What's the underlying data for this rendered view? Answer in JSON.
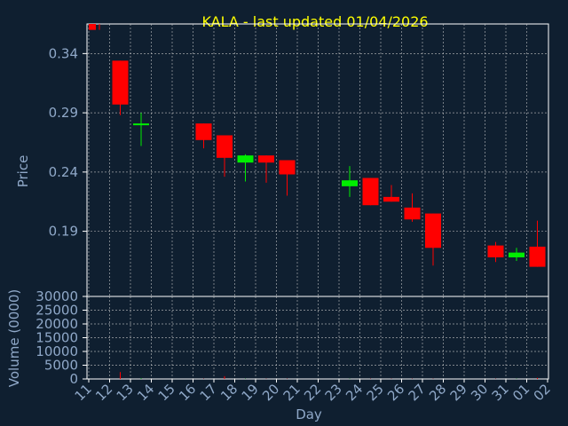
{
  "colors": {
    "background": "#0f1f30",
    "title": "#ffff00",
    "axis_text": "#8fa8c8",
    "frame": "#ffffff",
    "grid": "#c8c8c8",
    "up": "#00ee00",
    "down": "#ff0000"
  },
  "chart_data": {
    "type": "candlestick",
    "title": "KALA - last updated 01/04/2026",
    "xlabel": "Day",
    "price_panel": {
      "ylabel": "Price",
      "ylim": [
        0.135,
        0.365
      ],
      "yticks": [
        "0.34",
        "0.29",
        "0.24",
        "0.19"
      ],
      "ytick_values": [
        0.34,
        0.29,
        0.24,
        0.19
      ]
    },
    "volume_panel": {
      "ylabel": "Volume (0000)",
      "ylim": [
        0,
        30000
      ],
      "yticks": [
        "30000",
        "25000",
        "20000",
        "15000",
        "10000",
        "5000",
        "0"
      ],
      "ytick_values": [
        30000,
        25000,
        20000,
        15000,
        10000,
        5000,
        0
      ]
    },
    "x_tick_labels": [
      "11",
      "12",
      "13",
      "14",
      "15",
      "16",
      "17",
      "18",
      "19",
      "20",
      "21",
      "22",
      "23",
      "24",
      "25",
      "26",
      "27",
      "28",
      "29",
      "30",
      "31",
      "01",
      "02"
    ],
    "candles": [
      {
        "day": "11",
        "open": 0.365,
        "close": 0.36,
        "high": 0.365,
        "low": 0.36,
        "volume": 0
      },
      {
        "day": "12",
        "open": 0.334,
        "close": 0.297,
        "high": 0.334,
        "low": 0.288,
        "volume": 2500
      },
      {
        "day": "13",
        "open": 0.281,
        "close": 0.281,
        "high": 0.29,
        "low": 0.262,
        "volume": 200
      },
      {
        "day": "16",
        "open": 0.281,
        "close": 0.267,
        "high": 0.281,
        "low": 0.26,
        "volume": 100
      },
      {
        "day": "17",
        "open": 0.271,
        "close": 0.252,
        "high": 0.271,
        "low": 0.236,
        "volume": 1000
      },
      {
        "day": "18",
        "open": 0.248,
        "close": 0.254,
        "high": 0.255,
        "low": 0.232,
        "volume": 100
      },
      {
        "day": "19",
        "open": 0.254,
        "close": 0.248,
        "high": 0.254,
        "low": 0.231,
        "volume": 100
      },
      {
        "day": "20",
        "open": 0.25,
        "close": 0.238,
        "high": 0.25,
        "low": 0.22,
        "volume": 100
      },
      {
        "day": "23",
        "open": 0.228,
        "close": 0.233,
        "high": 0.245,
        "low": 0.219,
        "volume": 100
      },
      {
        "day": "24",
        "open": 0.235,
        "close": 0.212,
        "high": 0.235,
        "low": 0.212,
        "volume": 100
      },
      {
        "day": "25",
        "open": 0.219,
        "close": 0.215,
        "high": 0.229,
        "low": 0.215,
        "volume": 100
      },
      {
        "day": "26",
        "open": 0.21,
        "close": 0.2,
        "high": 0.222,
        "low": 0.198,
        "volume": 100
      },
      {
        "day": "27",
        "open": 0.205,
        "close": 0.176,
        "high": 0.205,
        "low": 0.161,
        "volume": 100
      },
      {
        "day": "30",
        "open": 0.178,
        "close": 0.168,
        "high": 0.181,
        "low": 0.164,
        "volume": 100
      },
      {
        "day": "31",
        "open": 0.168,
        "close": 0.172,
        "high": 0.176,
        "low": 0.165,
        "volume": 100
      },
      {
        "day": "01",
        "open": 0.177,
        "close": 0.16,
        "high": 0.199,
        "low": 0.16,
        "volume": 400
      }
    ],
    "grid": true
  }
}
